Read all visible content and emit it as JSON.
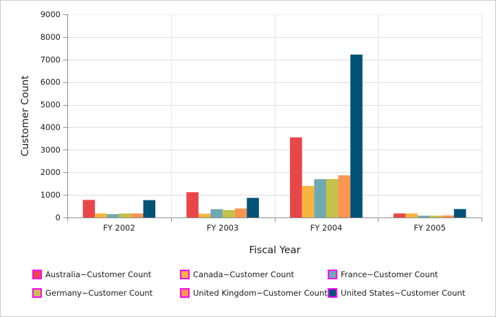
{
  "chart_data": {
    "type": "bar",
    "title": "",
    "xlabel": "Fiscal Year",
    "ylabel": "Customer Count",
    "ylim": [
      0,
      9000
    ],
    "yticks": [
      0,
      1000,
      2000,
      3000,
      4000,
      5000,
      6000,
      7000,
      8000,
      9000
    ],
    "ytick_labels": [
      "0",
      "1000",
      "2000",
      "3000",
      "4000",
      "5000",
      "6000",
      "7000",
      "8000",
      "9000"
    ],
    "grid": true,
    "legend_position": "bottom",
    "categories": [
      "FY 2002",
      "FY 2003",
      "FY 2004",
      "FY 2005"
    ],
    "series": [
      {
        "name": "Australia~Customer Count",
        "color": "#E94649",
        "values": [
          780,
          1120,
          3550,
          180
        ]
      },
      {
        "name": "Canada~Customer Count",
        "color": "#F6B53F",
        "values": [
          180,
          170,
          1400,
          180
        ]
      },
      {
        "name": "France~Customer Count",
        "color": "#6FAAB0",
        "values": [
          150,
          370,
          1700,
          80
        ]
      },
      {
        "name": "Germany~Customer Count",
        "color": "#C4C24A",
        "values": [
          180,
          330,
          1705,
          80
        ]
      },
      {
        "name": "United Kingdom~Customer Count",
        "color": "#FB954F",
        "values": [
          180,
          400,
          1870,
          90
        ]
      },
      {
        "name": "United States~Customer Count",
        "color": "#005277",
        "values": [
          770,
          870,
          7220,
          375
        ]
      }
    ],
    "legend_marker_border": "#FF00FF"
  }
}
